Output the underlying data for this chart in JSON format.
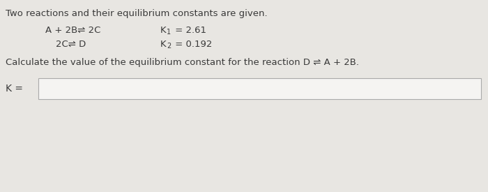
{
  "bg_color": "#e8e6e2",
  "text_color": "#3a3a3a",
  "intro_text": "Two reactions and their equilibrium constants are given.",
  "rx1_text": "A + 2B⇌ 2C",
  "rx2_text": "2C⇌ D",
  "k1_text": "K",
  "k1_sub": "1",
  "k1_val": " = 2.61",
  "k2_text": "K",
  "k2_sub": "2",
  "k2_val": " = 0.192",
  "question_text": "Calculate the value of the equilibrium constant for the reaction D ⇌ A + 2B.",
  "answer_label": "K =",
  "box_color": "#f5f4f2",
  "box_border": "#aaaaaa",
  "intro_fontsize": 9.5,
  "reaction_fontsize": 9.5,
  "question_fontsize": 9.5,
  "answer_fontsize": 10
}
